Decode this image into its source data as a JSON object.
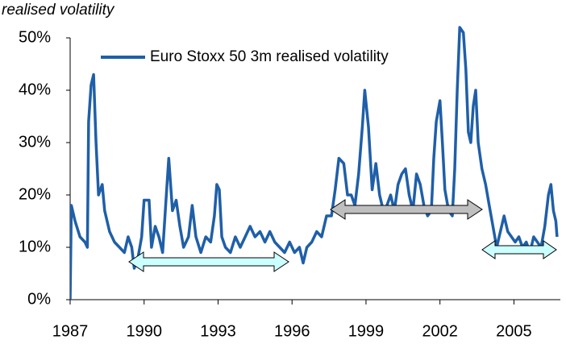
{
  "chart_data": {
    "type": "line",
    "ylabel": "realised volatility",
    "x": [
      1987.0,
      1987.05,
      1987.2,
      1987.4,
      1987.6,
      1987.7,
      1987.75,
      1987.85,
      1987.95,
      1988.05,
      1988.15,
      1988.3,
      1988.4,
      1988.6,
      1988.8,
      1989.0,
      1989.2,
      1989.35,
      1989.5,
      1989.6,
      1989.75,
      1989.9,
      1990.0,
      1990.2,
      1990.3,
      1990.45,
      1990.6,
      1990.75,
      1990.9,
      1991.0,
      1991.15,
      1991.3,
      1991.45,
      1991.6,
      1991.8,
      1991.95,
      1992.1,
      1992.3,
      1992.5,
      1992.7,
      1992.85,
      1992.95,
      1993.05,
      1993.15,
      1993.3,
      1993.5,
      1993.7,
      1993.9,
      1994.1,
      1994.3,
      1994.5,
      1994.7,
      1994.9,
      1995.1,
      1995.3,
      1995.5,
      1995.7,
      1995.9,
      1996.1,
      1996.3,
      1996.45,
      1996.6,
      1996.8,
      1997.0,
      1997.2,
      1997.4,
      1997.6,
      1997.75,
      1997.9,
      1998.1,
      1998.25,
      1998.4,
      1998.55,
      1998.7,
      1998.85,
      1998.95,
      1999.1,
      1999.25,
      1999.4,
      1999.55,
      1999.7,
      1999.85,
      2000.0,
      2000.15,
      2000.3,
      2000.45,
      2000.6,
      2000.75,
      2000.9,
      2001.05,
      2001.2,
      2001.35,
      2001.5,
      2001.65,
      2001.75,
      2001.85,
      2002.0,
      2002.1,
      2002.2,
      2002.35,
      2002.5,
      2002.6,
      2002.7,
      2002.8,
      2002.95,
      2003.05,
      2003.15,
      2003.25,
      2003.35,
      2003.45,
      2003.55,
      2003.7,
      2003.85,
      2004.0,
      2004.15,
      2004.3,
      2004.45,
      2004.6,
      2004.75,
      2004.9,
      2005.05,
      2005.2,
      2005.35,
      2005.5,
      2005.65,
      2005.8,
      2005.95,
      2006.1,
      2006.25,
      2006.4,
      2006.5,
      2006.6,
      2006.7,
      2006.75
    ],
    "series": [
      {
        "name": "Euro Stoxx 50 3m realised volatility",
        "color": "#1f5fa8",
        "values": [
          0,
          18,
          15,
          12,
          11,
          10,
          34,
          41,
          43,
          30,
          20,
          22,
          17,
          13,
          11,
          10,
          9,
          12,
          10,
          6,
          8,
          12,
          19,
          19,
          10,
          14,
          12,
          9,
          20,
          27,
          17,
          19,
          14,
          10,
          12,
          18,
          12,
          9,
          12,
          11,
          16,
          22,
          21,
          12,
          10,
          9,
          12,
          10,
          12,
          14,
          12,
          13,
          11,
          13,
          11,
          10,
          9,
          11,
          9,
          10,
          7,
          10,
          11,
          13,
          12,
          16,
          16,
          21,
          27,
          26,
          20,
          20,
          18,
          24,
          33,
          40,
          33,
          21,
          26,
          20,
          17,
          18,
          20,
          17,
          22,
          24,
          25,
          20,
          17,
          24,
          22,
          18,
          16,
          17,
          27,
          34,
          38,
          30,
          21,
          17,
          16,
          25,
          40,
          52,
          51,
          44,
          32,
          30,
          37,
          40,
          30,
          25,
          22,
          18,
          14,
          10,
          13,
          16,
          13,
          12,
          11,
          12,
          10,
          11,
          9,
          12,
          11,
          10,
          14,
          20,
          22,
          17,
          15,
          12
        ]
      }
    ],
    "xlim": [
      1987,
      2006.85
    ],
    "xticks": [
      1987,
      1990,
      1993,
      1996,
      1999,
      2002,
      2005
    ],
    "ylim": [
      0,
      50
    ],
    "yticks": [
      {
        "value": 0,
        "label": "0%"
      },
      {
        "value": 10,
        "label": "10%"
      },
      {
        "value": 20,
        "label": "20%"
      },
      {
        "value": 30,
        "label": "30%"
      },
      {
        "value": 40,
        "label": "40%"
      },
      {
        "value": 50,
        "label": "50%"
      }
    ]
  }
}
